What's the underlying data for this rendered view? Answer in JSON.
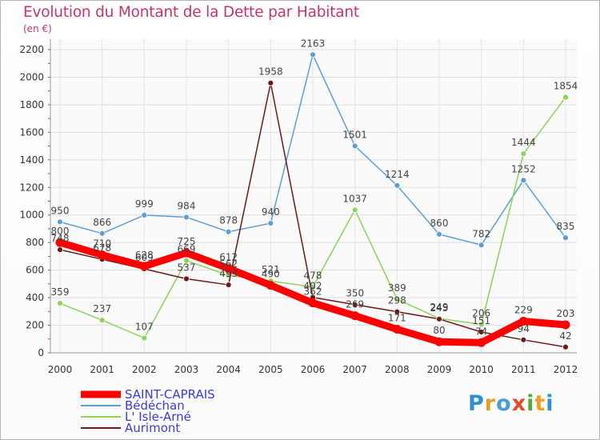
{
  "title": "Evolution du Montant de la Dette par Habitant",
  "unit": "(en €)",
  "logo_text": "Proxiti",
  "chart_data": {
    "type": "line",
    "x": [
      "2000",
      "2001",
      "2002",
      "2003",
      "2004",
      "2005",
      "2006",
      "2007",
      "2008",
      "2009",
      "2010",
      "2011",
      "2012"
    ],
    "ylim": [
      0,
      2200
    ],
    "yticks": [
      0,
      200,
      400,
      600,
      800,
      1000,
      1200,
      1400,
      1600,
      1800,
      2000,
      2200
    ],
    "grid": true,
    "legend_position": "bottom-left",
    "series": [
      {
        "name": "Bédéchan",
        "color": "#5f9ed4",
        "values": [
          950,
          866,
          999,
          984,
          878,
          940,
          2163,
          1501,
          1214,
          860,
          782,
          1252,
          835
        ]
      },
      {
        "name": "L' Isle-Arné",
        "color": "#8ad45a",
        "values": [
          359,
          237,
          107,
          669,
          562,
          521,
          478,
          1037,
          389,
          249,
          206,
          1444,
          1854
        ]
      },
      {
        "name": "Aurimont",
        "color": "#6b1a1a",
        "values": [
          748,
          678,
          609,
          537,
          493,
          1958,
          402,
          350,
          298,
          245,
          151,
          94,
          42
        ]
      },
      {
        "name": "SAINT-CAPRAIS",
        "color": "#ff0000",
        "values": [
          800,
          710,
          628,
          725,
          612,
          490,
          362,
          269,
          171,
          80,
          74,
          229,
          203
        ]
      }
    ],
    "legend_order": [
      "SAINT-CAPRAIS",
      "Bédéchan",
      "L' Isle-Arné",
      "Aurimont"
    ],
    "data_labels": [
      [
        "950",
        "866",
        "999",
        "984",
        "878",
        "940",
        "2163",
        "1501",
        "1214",
        "860",
        "782",
        "1252",
        "835"
      ],
      [
        "359",
        "237",
        "107",
        "669",
        "562",
        "521",
        "478",
        "1037",
        "389",
        "249",
        "206",
        "1444",
        "1854"
      ],
      [
        "748",
        "678",
        "609",
        "537",
        "493",
        "1958",
        "402",
        "350",
        "298",
        "245",
        "151",
        "94",
        "42"
      ],
      [
        "800",
        "710",
        "628",
        "725",
        "612",
        "490",
        "362",
        "269",
        "171",
        "80",
        "74",
        "229",
        "203"
      ]
    ]
  }
}
